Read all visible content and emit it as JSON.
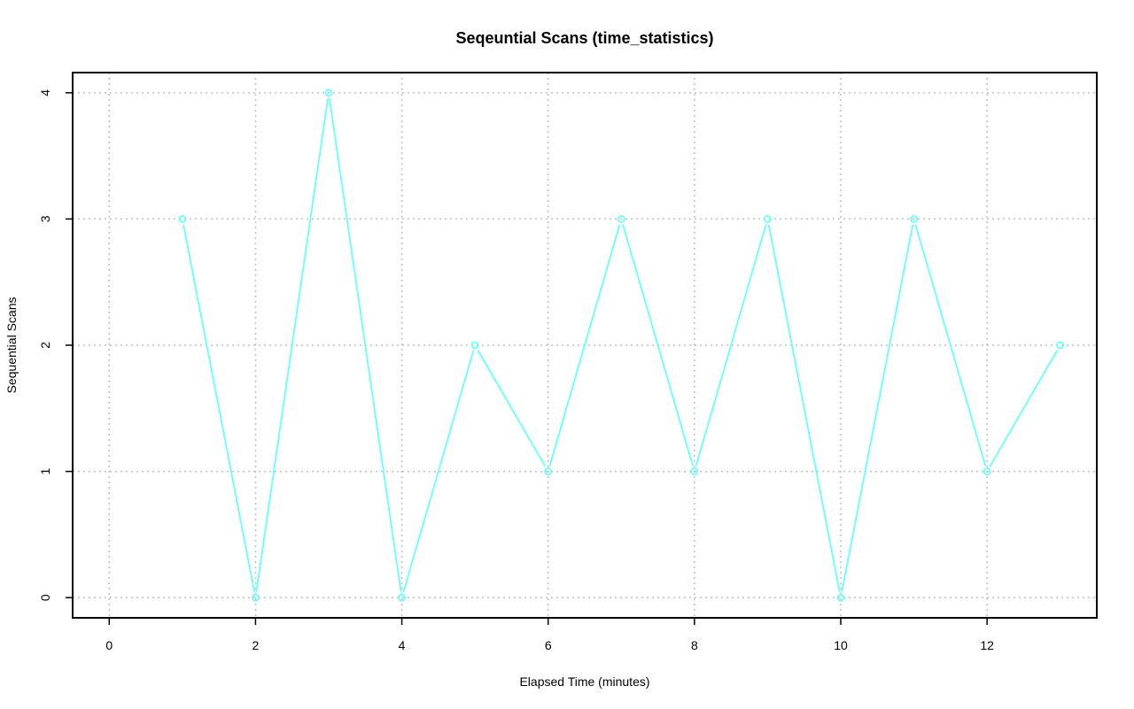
{
  "chart_data": {
    "type": "line",
    "title": "Seqeuntial Scans (time_statistics)",
    "xlabel": "Elapsed Time (minutes)",
    "ylabel": "Sequential Scans",
    "xlim": [
      -0.5,
      13.5
    ],
    "ylim": [
      -0.16,
      4.16
    ],
    "x_ticks": [
      0,
      2,
      4,
      6,
      8,
      10,
      12
    ],
    "y_ticks": [
      0,
      1,
      2,
      3,
      4
    ],
    "grid": true,
    "series": [
      {
        "x": [
          1,
          2,
          3,
          4,
          5,
          6,
          7,
          8,
          9,
          10,
          11,
          12,
          13
        ],
        "values": [
          3,
          0,
          4,
          0,
          2,
          1,
          3,
          1,
          3,
          0,
          3,
          1,
          2
        ],
        "color": "#66FFFF",
        "marker": "circle"
      }
    ]
  },
  "colors": {
    "line": "#66FFFF",
    "grid": "#BEBEBE",
    "axis": "#000000"
  }
}
